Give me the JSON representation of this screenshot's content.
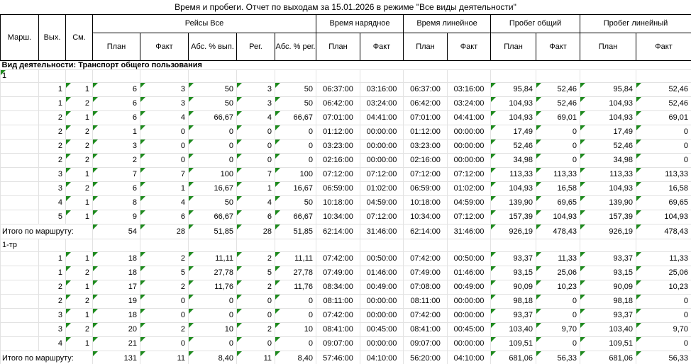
{
  "title": "Время и пробеги. Отчет по выходам за 15.01.2026 в режиме \"Все виды деятельности\"",
  "triangle_color": "#1e8a1e",
  "header": {
    "marsh": "Марш.",
    "vyh": "Вых.",
    "sm": "См.",
    "groups": {
      "reisy": "Рейсы Все",
      "vremya_naryadnoe": "Время нарядное",
      "vremya_lineynoe": "Время линейное",
      "probeg_obshchiy": "Пробег общий",
      "probeg_lineynyy": "Пробег линейный"
    },
    "sub": {
      "plan": "План",
      "fakt": "Факт",
      "abs_vyp": "Абс. % вып.",
      "reg": "Рег.",
      "abs_reg": "Абс. % рег."
    }
  },
  "activity_row": "Вид деятельности: Транспорт общего пользования",
  "totals_label": "Итого по маршруту:",
  "sections": [
    {
      "route": "1",
      "route_marker": true,
      "rows": [
        [
          "1",
          "1",
          "6",
          "3",
          "50",
          "3",
          "50",
          "06:37:00",
          "03:16:00",
          "06:37:00",
          "03:16:00",
          "95,84",
          "52,46",
          "95,84",
          "52,46"
        ],
        [
          "1",
          "2",
          "6",
          "3",
          "50",
          "3",
          "50",
          "06:42:00",
          "03:24:00",
          "06:42:00",
          "03:24:00",
          "104,93",
          "52,46",
          "104,93",
          "52,46"
        ],
        [
          "2",
          "1",
          "6",
          "4",
          "66,67",
          "4",
          "66,67",
          "07:01:00",
          "04:41:00",
          "07:01:00",
          "04:41:00",
          "104,93",
          "69,01",
          "104,93",
          "69,01"
        ],
        [
          "2",
          "2",
          "1",
          "0",
          "0",
          "0",
          "0",
          "01:12:00",
          "00:00:00",
          "01:12:00",
          "00:00:00",
          "17,49",
          "0",
          "17,49",
          "0"
        ],
        [
          "2",
          "2",
          "3",
          "0",
          "0",
          "0",
          "0",
          "03:23:00",
          "00:00:00",
          "03:23:00",
          "00:00:00",
          "52,46",
          "0",
          "52,46",
          "0"
        ],
        [
          "2",
          "2",
          "2",
          "0",
          "0",
          "0",
          "0",
          "02:16:00",
          "00:00:00",
          "02:16:00",
          "00:00:00",
          "34,98",
          "0",
          "34,98",
          "0"
        ],
        [
          "3",
          "1",
          "7",
          "7",
          "100",
          "7",
          "100",
          "07:12:00",
          "07:12:00",
          "07:12:00",
          "07:12:00",
          "113,33",
          "113,33",
          "113,33",
          "113,33"
        ],
        [
          "3",
          "2",
          "6",
          "1",
          "16,67",
          "1",
          "16,67",
          "06:59:00",
          "01:02:00",
          "06:59:00",
          "01:02:00",
          "104,93",
          "16,58",
          "104,93",
          "16,58"
        ],
        [
          "4",
          "1",
          "8",
          "4",
          "50",
          "4",
          "50",
          "10:18:00",
          "04:59:00",
          "10:18:00",
          "04:59:00",
          "139,90",
          "69,65",
          "139,90",
          "69,65"
        ],
        [
          "5",
          "1",
          "9",
          "6",
          "66,67",
          "6",
          "66,67",
          "10:34:00",
          "07:12:00",
          "10:34:00",
          "07:12:00",
          "157,39",
          "104,93",
          "157,39",
          "104,93"
        ]
      ],
      "totals": [
        "54",
        "28",
        "51,85",
        "28",
        "51,85",
        "62:14:00",
        "31:46:00",
        "62:14:00",
        "31:46:00",
        "926,19",
        "478,43",
        "926,19",
        "478,43"
      ]
    },
    {
      "route": "1-тр",
      "route_marker": false,
      "rows": [
        [
          "1",
          "1",
          "18",
          "2",
          "11,11",
          "2",
          "11,11",
          "07:42:00",
          "00:50:00",
          "07:42:00",
          "00:50:00",
          "93,37",
          "11,33",
          "93,37",
          "11,33"
        ],
        [
          "1",
          "2",
          "18",
          "5",
          "27,78",
          "5",
          "27,78",
          "07:49:00",
          "01:46:00",
          "07:49:00",
          "01:46:00",
          "93,15",
          "25,06",
          "93,15",
          "25,06"
        ],
        [
          "2",
          "1",
          "17",
          "2",
          "11,76",
          "2",
          "11,76",
          "08:34:00",
          "00:49:00",
          "07:08:00",
          "00:49:00",
          "90,09",
          "10,23",
          "90,09",
          "10,23"
        ],
        [
          "2",
          "2",
          "19",
          "0",
          "0",
          "0",
          "0",
          "08:11:00",
          "00:00:00",
          "08:11:00",
          "00:00:00",
          "98,18",
          "0",
          "98,18",
          "0"
        ],
        [
          "3",
          "1",
          "18",
          "0",
          "0",
          "0",
          "0",
          "07:42:00",
          "00:00:00",
          "07:42:00",
          "00:00:00",
          "93,37",
          "0",
          "93,37",
          "0"
        ],
        [
          "3",
          "2",
          "20",
          "2",
          "10",
          "2",
          "10",
          "08:41:00",
          "00:45:00",
          "08:41:00",
          "00:45:00",
          "103,40",
          "9,70",
          "103,40",
          "9,70"
        ],
        [
          "4",
          "1",
          "21",
          "0",
          "0",
          "0",
          "0",
          "09:07:00",
          "00:00:00",
          "09:07:00",
          "00:00:00",
          "109,51",
          "0",
          "109,51",
          "0"
        ]
      ],
      "totals": [
        "131",
        "11",
        "8,40",
        "11",
        "8,40",
        "57:46:00",
        "04:10:00",
        "56:20:00",
        "04:10:00",
        "681,06",
        "56,33",
        "681,06",
        "56,33"
      ]
    }
  ]
}
